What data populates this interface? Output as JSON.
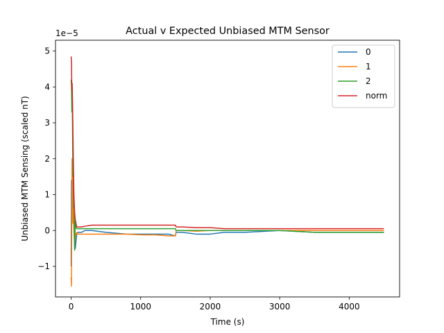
{
  "chart_data": {
    "type": "line",
    "title": "Actual v Expected Unbiased MTM Sensor",
    "xlabel": "Time (s)",
    "ylabel": "Unbiased MTM Sensing (scaled nT)",
    "y_offset_text": "1e−5",
    "xlim": [
      -225,
      4725
    ],
    "ylim": [
      -1.85,
      5.3
    ],
    "x_ticks": [
      0,
      1000,
      2000,
      3000,
      4000
    ],
    "x_tick_labels": [
      "0",
      "1000",
      "2000",
      "3000",
      "4000"
    ],
    "y_ticks": [
      -1,
      0,
      1,
      2,
      3,
      4,
      5
    ],
    "y_tick_labels": [
      "−1",
      "0",
      "1",
      "2",
      "3",
      "4",
      "5"
    ],
    "y_unit_scale": 1e-05,
    "grid": false,
    "legend_position": "upper right",
    "series": [
      {
        "name": "0",
        "color": "#1f77b4",
        "x": [
          0,
          5,
          10,
          15,
          20,
          25,
          30,
          40,
          50,
          60,
          70,
          80,
          100,
          150,
          200,
          300,
          500,
          800,
          1000,
          1200,
          1400,
          1500,
          1510,
          1600,
          1800,
          2000,
          2200,
          2500,
          3000,
          3500,
          4000,
          4500
        ],
        "y": [
          -1.0,
          1.4,
          1.0,
          2.0,
          1.2,
          0.6,
          1.4,
          0.4,
          -0.2,
          -0.5,
          -0.3,
          -0.1,
          -0.05,
          -0.05,
          0.0,
          0.0,
          -0.05,
          -0.1,
          -0.1,
          -0.1,
          -0.1,
          -0.15,
          -0.05,
          -0.05,
          -0.1,
          -0.1,
          -0.05,
          -0.05,
          0.0,
          -0.05,
          -0.05,
          -0.05
        ]
      },
      {
        "name": "1",
        "color": "#ff7f0e",
        "x": [
          0,
          5,
          10,
          15,
          20,
          25,
          30,
          40,
          50,
          60,
          70,
          80,
          100,
          150,
          200,
          300,
          500,
          800,
          1000,
          1200,
          1400,
          1500,
          1510,
          1600,
          1800,
          2000,
          2200,
          2500,
          3000,
          3500,
          4000,
          4500
        ],
        "y": [
          -1.3,
          -1.55,
          0.8,
          2.0,
          1.0,
          0.2,
          0.6,
          0.0,
          -0.4,
          -0.2,
          -0.1,
          -0.05,
          -0.1,
          -0.1,
          -0.1,
          -0.1,
          -0.1,
          -0.1,
          -0.12,
          -0.12,
          -0.15,
          -0.15,
          0.0,
          0.0,
          -0.02,
          0.0,
          0.0,
          0.0,
          0.0,
          0.0,
          0.0,
          0.0
        ]
      },
      {
        "name": "2",
        "color": "#2ca02c",
        "x": [
          0,
          5,
          10,
          15,
          20,
          25,
          30,
          40,
          50,
          60,
          70,
          80,
          100,
          150,
          200,
          300,
          500,
          800,
          1000,
          1200,
          1400,
          1500,
          1510,
          1600,
          1800,
          2000,
          2200,
          2500,
          3000,
          3500,
          4000,
          4500
        ],
        "y": [
          4.2,
          4.0,
          3.3,
          3.7,
          2.8,
          1.5,
          2.0,
          0.8,
          -0.55,
          0.3,
          0.1,
          0.05,
          0.05,
          0.05,
          0.05,
          0.05,
          0.05,
          0.05,
          0.05,
          0.05,
          0.05,
          0.05,
          0.0,
          0.0,
          0.0,
          0.0,
          0.0,
          0.0,
          0.0,
          -0.05,
          -0.05,
          -0.05
        ]
      },
      {
        "name": "norm",
        "color": "#d62728",
        "x": [
          0,
          5,
          10,
          15,
          20,
          25,
          30,
          40,
          50,
          60,
          70,
          80,
          100,
          150,
          200,
          300,
          500,
          800,
          1000,
          1200,
          1400,
          1500,
          1510,
          1600,
          1800,
          2000,
          2200,
          2500,
          3000,
          3500,
          4000,
          4500
        ],
        "y": [
          4.85,
          4.7,
          3.9,
          4.1,
          3.6,
          3.0,
          2.2,
          1.0,
          0.5,
          0.3,
          0.2,
          0.1,
          0.1,
          0.1,
          0.12,
          0.15,
          0.15,
          0.15,
          0.15,
          0.15,
          0.15,
          0.15,
          0.1,
          0.1,
          0.08,
          0.08,
          0.05,
          0.05,
          0.05,
          0.05,
          0.05,
          0.05
        ]
      }
    ]
  }
}
